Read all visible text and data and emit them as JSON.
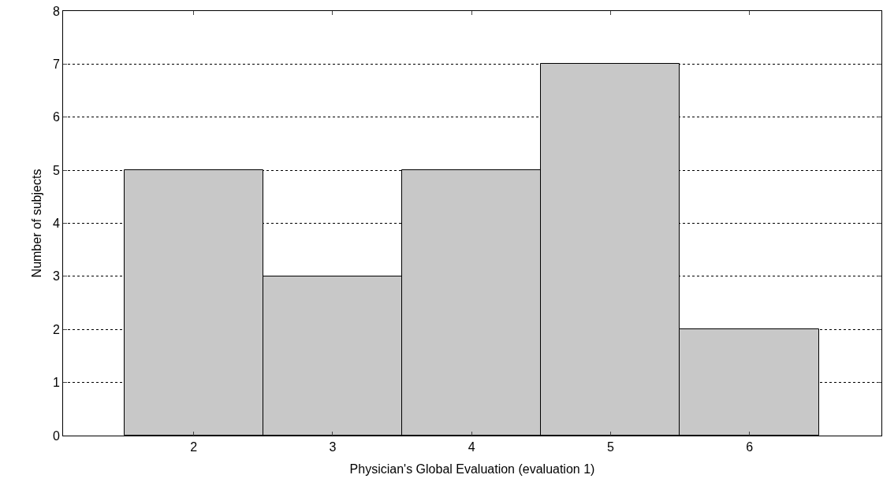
{
  "chart_data": {
    "type": "histogram",
    "xlabel": "Physician's Global Evaluation (evaluation 1)",
    "ylabel": "Number of subjects",
    "bins": [
      1.5,
      2.5,
      3.5,
      4.5,
      5.5,
      6.5
    ],
    "values": [
      5,
      3,
      5,
      7,
      2
    ],
    "color": "#c8c8c8",
    "xlim": [
      1.06,
      6.95
    ],
    "xticks": [
      2,
      3,
      4,
      5,
      6
    ],
    "ylim": [
      0,
      8
    ],
    "yticks": [
      0,
      1,
      2,
      3,
      4,
      5,
      6,
      7,
      8
    ],
    "grid": "y"
  }
}
